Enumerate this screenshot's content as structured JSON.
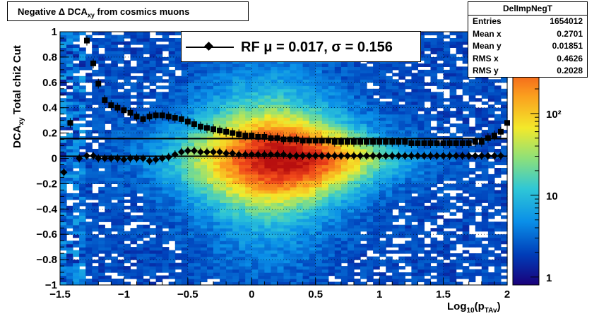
{
  "title": {
    "prefix": "Negative Δ DCA",
    "sub": "xy",
    "suffix": " from cosmics muons"
  },
  "stats": {
    "name": "DelImpNegT",
    "rows": [
      {
        "label": "Entries",
        "value": "1654012"
      },
      {
        "label": "Mean x",
        "value": "0.2701"
      },
      {
        "label": "Mean y",
        "value": "0.01851"
      },
      {
        "label": "RMS x",
        "value": "0.4626"
      },
      {
        "label": "RMS y",
        "value": "0.2028"
      }
    ]
  },
  "legend": {
    "text": "RF μ =  0.017, σ =   0.156"
  },
  "axes": {
    "ylabel_main": "DCA",
    "ylabel_sub": "xy",
    "ylabel_suffix": "  Total chi2 Cut",
    "xlabel_main": "Log",
    "xlabel_sub1": "10",
    "xlabel_mid": "(p",
    "xlabel_sub2": "TAv",
    "xlabel_end": ")"
  },
  "colors": {
    "mean_marker": "#000000",
    "rms_marker": "#000000",
    "fit_line": "#000000"
  },
  "chart_data": {
    "type": "heatmap",
    "xlim": [
      -1.5,
      2.0
    ],
    "ylim": [
      -1.0,
      1.0
    ],
    "x_ticks": [
      -1.5,
      -1.0,
      -0.5,
      0,
      0.5,
      1,
      1.5,
      2
    ],
    "x_tick_labels": [
      "−1.5",
      "−1",
      "−0.5",
      "0",
      "0.5",
      "1",
      "1.5",
      "2"
    ],
    "y_ticks": [
      -1,
      -0.8,
      -0.6,
      -0.4,
      -0.2,
      0,
      0.2,
      0.4,
      0.6,
      0.8,
      1
    ],
    "y_tick_labels": [
      "−1",
      "−0.8",
      "−0.6",
      "−0.4",
      "−0.2",
      "0",
      "0.2",
      "0.4",
      "0.6",
      "0.8",
      "1"
    ],
    "z_scale": "log",
    "z_range": [
      0.8,
      1000
    ],
    "z_tick_labels": [
      {
        "value": 1,
        "label": "1"
      },
      {
        "value": 10,
        "label": "10"
      },
      {
        "value": 100,
        "label": "10²"
      }
    ],
    "fit_lines": [
      0.017,
      0.156
    ],
    "series": [
      {
        "name": "mean",
        "marker": "diamond",
        "x": [
          -1.47,
          -1.35,
          -1.29,
          -1.24,
          -1.2,
          -1.15,
          -1.1,
          -1.05,
          -1.0,
          -0.95,
          -0.9,
          -0.85,
          -0.8,
          -0.75,
          -0.7,
          -0.65,
          -0.6,
          -0.55,
          -0.5,
          -0.45,
          -0.4,
          -0.35,
          -0.3,
          -0.25,
          -0.2,
          -0.15,
          -0.1,
          -0.05,
          0.0,
          0.05,
          0.1,
          0.15,
          0.2,
          0.25,
          0.3,
          0.35,
          0.4,
          0.45,
          0.5,
          0.55,
          0.6,
          0.65,
          0.7,
          0.75,
          0.8,
          0.85,
          0.9,
          0.95,
          1.0,
          1.05,
          1.1,
          1.15,
          1.2,
          1.25,
          1.3,
          1.35,
          1.4,
          1.45,
          1.5,
          1.55,
          1.6,
          1.65,
          1.7,
          1.75,
          1.8,
          1.85,
          1.9,
          1.95
        ],
        "y": [
          -0.11,
          0.0,
          0.02,
          0.02,
          0.0,
          0.0,
          0.0,
          0.0,
          -0.01,
          0.0,
          0.0,
          0.0,
          -0.02,
          -0.01,
          0.0,
          0.01,
          0.03,
          0.05,
          0.06,
          0.06,
          0.05,
          0.05,
          0.05,
          0.05,
          0.04,
          0.04,
          0.03,
          0.03,
          0.03,
          0.03,
          0.03,
          0.03,
          0.03,
          0.03,
          0.02,
          0.02,
          0.02,
          0.02,
          0.02,
          0.02,
          0.02,
          0.02,
          0.02,
          0.02,
          0.02,
          0.02,
          0.02,
          0.02,
          0.02,
          0.02,
          0.02,
          0.02,
          0.02,
          0.02,
          0.02,
          0.02,
          0.02,
          0.02,
          0.02,
          0.02,
          0.02,
          0.02,
          0.02,
          0.02,
          0.02,
          0.02,
          0.02,
          0.02
        ]
      },
      {
        "name": "rms",
        "marker": "square",
        "x": [
          -1.42,
          -1.29,
          -1.24,
          -1.2,
          -1.15,
          -1.1,
          -1.05,
          -1.0,
          -0.95,
          -0.9,
          -0.85,
          -0.8,
          -0.75,
          -0.7,
          -0.65,
          -0.6,
          -0.55,
          -0.5,
          -0.45,
          -0.4,
          -0.35,
          -0.3,
          -0.25,
          -0.2,
          -0.15,
          -0.1,
          -0.05,
          0.0,
          0.05,
          0.1,
          0.15,
          0.2,
          0.25,
          0.3,
          0.35,
          0.4,
          0.45,
          0.5,
          0.55,
          0.6,
          0.65,
          0.7,
          0.75,
          0.8,
          0.85,
          0.9,
          0.95,
          1.0,
          1.05,
          1.1,
          1.15,
          1.2,
          1.25,
          1.3,
          1.35,
          1.4,
          1.45,
          1.5,
          1.55,
          1.6,
          1.65,
          1.7,
          1.75,
          1.8,
          1.85,
          1.9,
          1.95,
          2.0
        ],
        "y": [
          0.28,
          0.93,
          0.75,
          0.59,
          0.46,
          0.42,
          0.4,
          0.38,
          0.36,
          0.33,
          0.31,
          0.33,
          0.34,
          0.34,
          0.33,
          0.32,
          0.31,
          0.29,
          0.27,
          0.25,
          0.24,
          0.23,
          0.22,
          0.21,
          0.2,
          0.19,
          0.18,
          0.18,
          0.17,
          0.17,
          0.16,
          0.16,
          0.15,
          0.15,
          0.15,
          0.14,
          0.14,
          0.14,
          0.14,
          0.14,
          0.13,
          0.13,
          0.13,
          0.13,
          0.13,
          0.13,
          0.13,
          0.13,
          0.13,
          0.13,
          0.13,
          0.13,
          0.12,
          0.12,
          0.12,
          0.12,
          0.12,
          0.12,
          0.12,
          0.12,
          0.12,
          0.12,
          0.13,
          0.13,
          0.16,
          0.18,
          0.21,
          0.28
        ]
      }
    ]
  }
}
